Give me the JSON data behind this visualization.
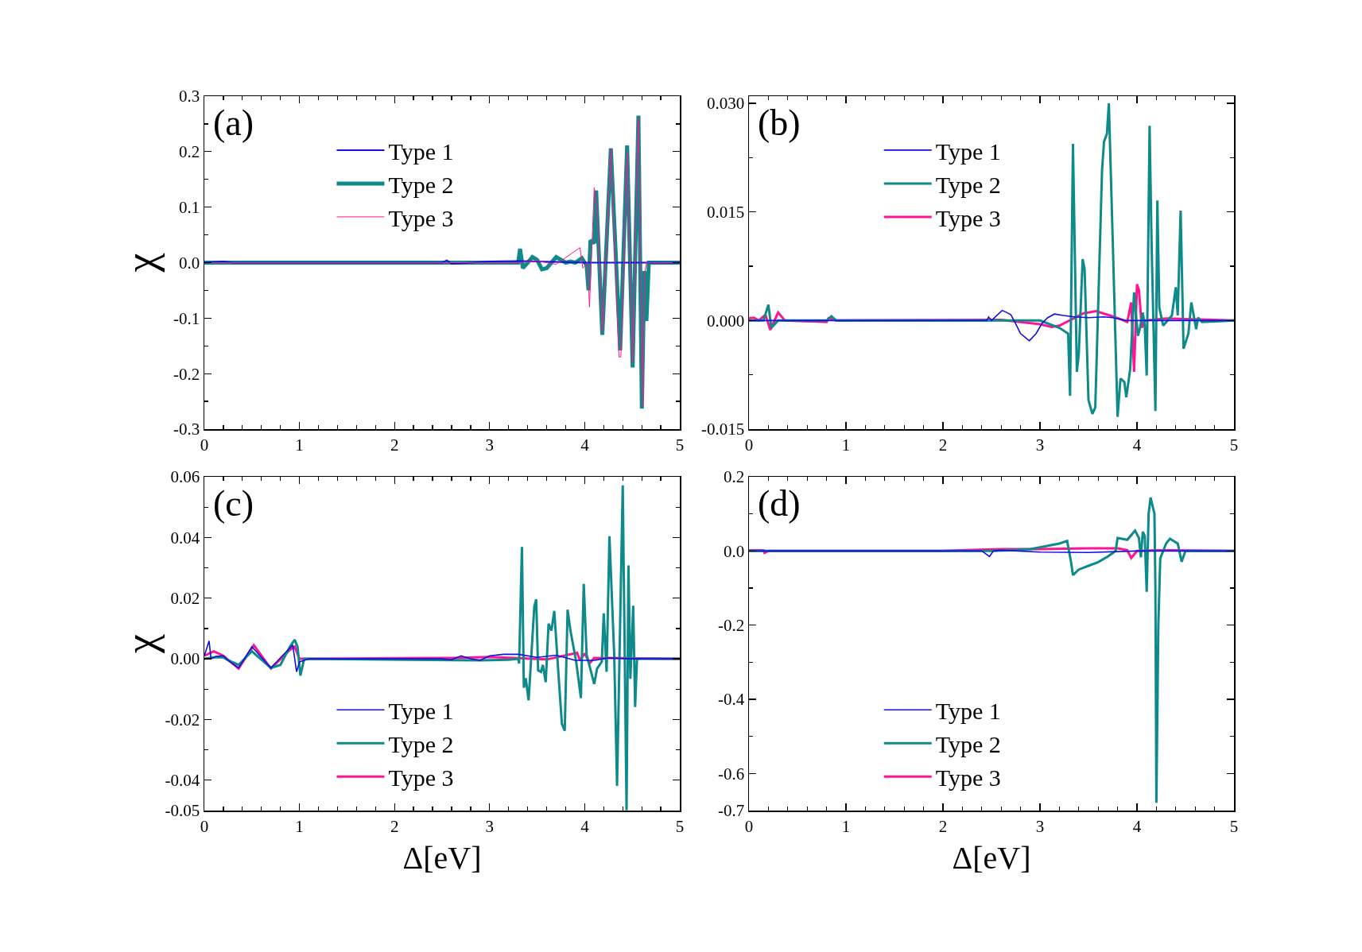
{
  "chart_data": [
    {
      "type": "line",
      "title": "(a)",
      "ylabel": "χ",
      "xlim": [
        0,
        5
      ],
      "xticks": [
        0,
        1,
        2,
        3,
        4,
        5
      ],
      "ylim": [
        -0.3,
        0.3
      ],
      "yticks": [
        {
          "value": -0.3,
          "label": "-0.3"
        },
        {
          "value": -0.2,
          "label": "-0.2"
        },
        {
          "value": -0.1,
          "label": "-0.1"
        },
        {
          "value": 0,
          "label": "0.0"
        },
        {
          "value": 0.1,
          "label": "0.1"
        },
        {
          "value": 0.2,
          "label": "0.2"
        },
        {
          "value": 0.3,
          "label": "0.3"
        }
      ],
      "grid": false,
      "legend": "top",
      "line_style": "solid",
      "marker": "none",
      "series": [
        {
          "name": "Type 1",
          "color": "#1010e0",
          "x": [
            0,
            0.2,
            0.3,
            2.5,
            2.55,
            2.6,
            3.0,
            3.3,
            3.5,
            4.0,
            5
          ],
          "values": [
            0,
            0.002,
            0,
            0,
            0.004,
            -0.002,
            0.002,
            0.003,
            0.002,
            0,
            0
          ]
        },
        {
          "name": "Type 2",
          "color": "#0f8a8a",
          "x": [
            0,
            3.3,
            3.32,
            3.35,
            3.4,
            3.45,
            3.5,
            3.55,
            3.6,
            3.65,
            3.7,
            3.75,
            3.8,
            3.85,
            3.9,
            3.97,
            4.02,
            4.04,
            4.06,
            4.1,
            4.12,
            4.185,
            4.275,
            4.373,
            4.446,
            4.504,
            4.565,
            4.601,
            4.627,
            4.649,
            4.674,
            5
          ],
          "values": [
            0,
            0,
            0.025,
            -0.01,
            0,
            0.01,
            0.005,
            -0.012,
            -0.01,
            0,
            0.01,
            0.005,
            0,
            0.002,
            0,
            0.008,
            -0.005,
            -0.05,
            0.04,
            0.035,
            0.13,
            -0.13,
            0.206,
            -0.158,
            0.211,
            -0.189,
            0.265,
            -0.263,
            -0.015,
            -0.105,
            0,
            0
          ]
        },
        {
          "name": "Type 3",
          "color": "#ff1493",
          "x": [
            0,
            3.3,
            3.5,
            3.7,
            3.95,
            3.98,
            4.03,
            4.05,
            4.1,
            4.13,
            4.185,
            4.275,
            4.36,
            4.38,
            4.446,
            4.504,
            4.565,
            4.61,
            4.63,
            4.65,
            5
          ],
          "values": [
            0,
            0,
            0.003,
            -0.003,
            0.027,
            -0.01,
            0,
            -0.08,
            0.135,
            0.1,
            -0.125,
            0.205,
            -0.17,
            -0.17,
            0.2,
            -0.18,
            0.26,
            -0.26,
            -0.02,
            0,
            0
          ]
        }
      ]
    },
    {
      "type": "line",
      "title": "(b)",
      "xlim": [
        0,
        5
      ],
      "xticks": [
        0,
        1,
        2,
        3,
        4,
        5
      ],
      "ylim": [
        -0.015,
        0.031
      ],
      "yticks": [
        {
          "value": -0.015,
          "label": "-0.015"
        },
        {
          "value": 0,
          "label": "0.000"
        },
        {
          "value": 0.015,
          "label": "0.015"
        },
        {
          "value": 0.03,
          "label": "0.030"
        }
      ],
      "grid": false,
      "legend": "top",
      "line_style": "solid",
      "marker": "none",
      "series": [
        {
          "name": "Type 1",
          "color": "#1010e0",
          "x": [
            0,
            2.45,
            2.47,
            2.5,
            2.61,
            2.66,
            2.7,
            2.74,
            2.8,
            2.89,
            2.96,
            3.02,
            3.08,
            3.15,
            3.24,
            3.36,
            3.5,
            3.66,
            3.75,
            3.89,
            5
          ],
          "values": [
            0,
            0,
            0.0005,
            0,
            0.0014,
            0.0011,
            0.0008,
            -0.0002,
            -0.0018,
            -0.0028,
            -0.0018,
            -0.0004,
            0.0004,
            0.0009,
            0.0007,
            0.0005,
            0.0004,
            0.0005,
            0.0004,
            0,
            0
          ]
        },
        {
          "name": "Type 2",
          "color": "#0f8a8a",
          "x": [
            0,
            0.15,
            0.2,
            0.23,
            0.3,
            0.8,
            0.85,
            0.9,
            3.0,
            3.2,
            3.29,
            3.31,
            3.34,
            3.38,
            3.4,
            3.44,
            3.46,
            3.5,
            3.54,
            3.57,
            3.64,
            3.66,
            3.69,
            3.71,
            3.75,
            3.8,
            3.83,
            3.87,
            3.89,
            3.93,
            3.97,
            3.99,
            4.01,
            4.03,
            4.06,
            4.08,
            4.1,
            4.13,
            4.15,
            4.19,
            4.21,
            4.23,
            4.27,
            4.36,
            4.4,
            4.42,
            4.45,
            4.48,
            4.53,
            4.56,
            4.57,
            4.61,
            4.63,
            4.67,
            5
          ],
          "values": [
            0,
            0,
            0.0022,
            -0.001,
            0,
            0,
            0.0006,
            0,
            0,
            -0.001,
            -0.0018,
            -0.0104,
            0.0244,
            -0.0071,
            -0.0046,
            0.0085,
            0.0071,
            -0.011,
            -0.0129,
            -0.012,
            0.0208,
            0.0247,
            0.0258,
            0.03,
            0.011,
            -0.0133,
            -0.008,
            -0.0085,
            -0.0106,
            -0.0067,
            0.0039,
            0.0007,
            -0.0021,
            -0.0011,
            0.0011,
            -0.0007,
            -0.0076,
            0.0269,
            0.011,
            -0.0125,
            0.0166,
            0.0018,
            -0.0007,
            0.0007,
            0.0046,
            0.0007,
            0.0152,
            -0.0039,
            -0.0018,
            0.0025,
            0.0018,
            -0.0012,
            0.0004,
            -0.0002,
            0
          ]
        },
        {
          "name": "Type 3",
          "color": "#ff1493",
          "x": [
            0,
            0.05,
            0.1,
            0.17,
            0.22,
            0.3,
            0.37,
            0.8,
            0.82,
            0.9,
            2.6,
            3.0,
            3.12,
            3.2,
            3.45,
            3.58,
            3.72,
            3.83,
            3.9,
            3.94,
            3.97,
            4.0,
            4.02,
            4.05,
            4.08,
            4.3,
            5
          ],
          "values": [
            0.0003,
            0.0004,
            0,
            0.0008,
            -0.0013,
            0.0011,
            0,
            -0.0002,
            0.0003,
            0,
            0.0001,
            -0.0005,
            -0.0009,
            -0.0007,
            0.001,
            0.0013,
            0.0007,
            0.0002,
            -0.0002,
            0.0025,
            -0.0071,
            0.005,
            0.0042,
            -0.001,
            0,
            0.0003,
            0
          ]
        }
      ]
    },
    {
      "type": "line",
      "title": "(c)",
      "ylabel": "χ",
      "xlabel": "Δ[eV]",
      "xlim": [
        0,
        5
      ],
      "xticks": [
        0,
        1,
        2,
        3,
        4,
        5
      ],
      "ylim": [
        -0.05,
        0.06
      ],
      "yticks": [
        -0.05,
        -0.04,
        -0.02,
        {
          "value": 0,
          "label": "0.00"
        },
        0.02,
        0.04,
        0.06
      ],
      "grid": false,
      "legend": "bottom",
      "line_style": "solid",
      "marker": "none",
      "series": [
        {
          "name": "Type 1",
          "color": "#1010e0",
          "x": [
            0,
            0.05,
            0.07,
            0.12,
            0.2,
            0.25,
            0.36,
            0.5,
            0.7,
            0.85,
            0.93,
            0.97,
            1.0,
            1.1,
            2.5,
            2.6,
            2.7,
            2.8,
            2.9,
            3.0,
            3.15,
            3.3,
            3.5,
            3.7,
            3.9,
            4.1,
            4.25,
            4.5,
            5
          ],
          "values": [
            0.001,
            0.0059,
            0,
            0.0008,
            0.001,
            -0.0005,
            -0.003,
            0.004,
            -0.003,
            0.002,
            0.0045,
            -0.0043,
            -0.001,
            0,
            0,
            -0.0003,
            0.001,
            0,
            -0.0005,
            0.001,
            0.0015,
            0.0015,
            0.0005,
            0.0012,
            -0.0005,
            -0.0005,
            0.0003,
            0,
            0
          ]
        },
        {
          "name": "Type 2",
          "color": "#0f8a8a",
          "x": [
            0,
            0.1,
            0.2,
            0.25,
            0.36,
            0.5,
            0.7,
            0.8,
            0.9,
            0.95,
            0.98,
            1.01,
            1.05,
            2.9,
            3.2,
            3.3,
            3.31,
            3.34,
            3.36,
            3.38,
            3.41,
            3.47,
            3.49,
            3.51,
            3.54,
            3.56,
            3.59,
            3.62,
            3.65,
            3.68,
            3.72,
            3.76,
            3.79,
            3.82,
            3.85,
            3.91,
            3.96,
            3.99,
            4.02,
            4.1,
            4.13,
            4.18,
            4.2,
            4.23,
            4.26,
            4.31,
            4.34,
            4.4,
            4.44,
            4.46,
            4.48,
            4.51,
            4.53,
            4.55,
            5
          ],
          "values": [
            0,
            0.0005,
            0.0005,
            -0.0005,
            -0.002,
            0.0025,
            -0.003,
            -0.002,
            0.004,
            0.0063,
            0.004,
            -0.0055,
            0,
            -0.0005,
            -0.0003,
            0,
            -0.0015,
            0.0369,
            -0.0095,
            -0.0064,
            -0.0137,
            0.0173,
            0.0196,
            -0.0038,
            -0.0043,
            -0.002,
            -0.0077,
            0.0116,
            0.0093,
            0.0158,
            -0.0032,
            -0.0214,
            -0.0237,
            0.0162,
            0.0093,
            -0.0009,
            -0.0129,
            0.0247,
            0.0014,
            -0.0083,
            -0.0032,
            -0.0009,
            0.015,
            -0.0043,
            0.0404,
            0.0014,
            -0.0419,
            0.0572,
            -0.0499,
            0.0308,
            -0.0066,
            0.0175,
            -0.0159,
            0,
            0
          ]
        },
        {
          "name": "Type 3",
          "color": "#ff1493",
          "x": [
            0,
            0.1,
            0.2,
            0.36,
            0.52,
            0.7,
            0.9,
            0.95,
            1.0,
            1.1,
            2.6,
            3.0,
            3.3,
            3.6,
            3.92,
            3.95,
            4.0,
            4.05,
            4.1,
            5
          ],
          "values": [
            0.001,
            0.0025,
            0.001,
            -0.0032,
            0.0045,
            -0.0032,
            0.003,
            0.004,
            0,
            0,
            0.0003,
            0.0006,
            0.0002,
            -0.0002,
            0.002,
            -0.0005,
            0.0018,
            -0.0015,
            0.0003,
            0
          ]
        }
      ]
    },
    {
      "type": "line",
      "title": "(d)",
      "xlabel": "Δ[eV]",
      "xlim": [
        0,
        5
      ],
      "xticks": [
        0,
        1,
        2,
        3,
        4,
        5
      ],
      "ylim": [
        -0.7,
        0.2
      ],
      "yticks": [
        -0.7,
        -0.6,
        -0.4,
        -0.2,
        {
          "value": 0,
          "label": "0.0"
        },
        0.2
      ],
      "grid": false,
      "legend": "bottom",
      "line_style": "solid",
      "marker": "none",
      "series": [
        {
          "name": "Type 1",
          "color": "#1010e0",
          "x": [
            0,
            2.4,
            2.48,
            2.52,
            2.6,
            3.0,
            3.5,
            4.0,
            5
          ],
          "values": [
            0,
            0,
            -0.015,
            0,
            0.002,
            -0.003,
            -0.004,
            0,
            0
          ]
        },
        {
          "name": "Type 2",
          "color": "#0f8a8a",
          "x": [
            0,
            2.5,
            2.7,
            2.9,
            3.0,
            3.2,
            3.28,
            3.32,
            3.34,
            3.4,
            3.5,
            3.6,
            3.7,
            3.78,
            3.8,
            3.9,
            3.98,
            4.02,
            4.04,
            4.06,
            4.08,
            4.1,
            4.12,
            4.14,
            4.18,
            4.19,
            4.2,
            4.22,
            4.24,
            4.3,
            4.34,
            4.42,
            4.46,
            4.5,
            5
          ],
          "values": [
            0,
            0,
            0.002,
            0.005,
            0.01,
            0.02,
            0.027,
            -0.03,
            -0.065,
            -0.05,
            -0.04,
            -0.03,
            -0.015,
            0,
            0.035,
            0.03,
            0.055,
            0.035,
            -0.017,
            0.052,
            0.04,
            -0.11,
            0.1,
            0.144,
            0.1,
            -0.1,
            -0.679,
            -0.2,
            -0.02,
            0.02,
            0.033,
            0.02,
            -0.029,
            0,
            0
          ]
        },
        {
          "name": "Type 3",
          "color": "#ff1493",
          "x": [
            0,
            0.15,
            0.16,
            0.2,
            2.0,
            2.3,
            2.6,
            3.0,
            3.5,
            3.8,
            3.9,
            3.94,
            4.0,
            4.2,
            4.35,
            5
          ],
          "values": [
            0.002,
            0.002,
            -0.005,
            0,
            0,
            0.003,
            0.005,
            0.005,
            0.007,
            0.007,
            0.002,
            -0.019,
            0,
            0.002,
            0.002,
            0
          ]
        }
      ]
    }
  ]
}
